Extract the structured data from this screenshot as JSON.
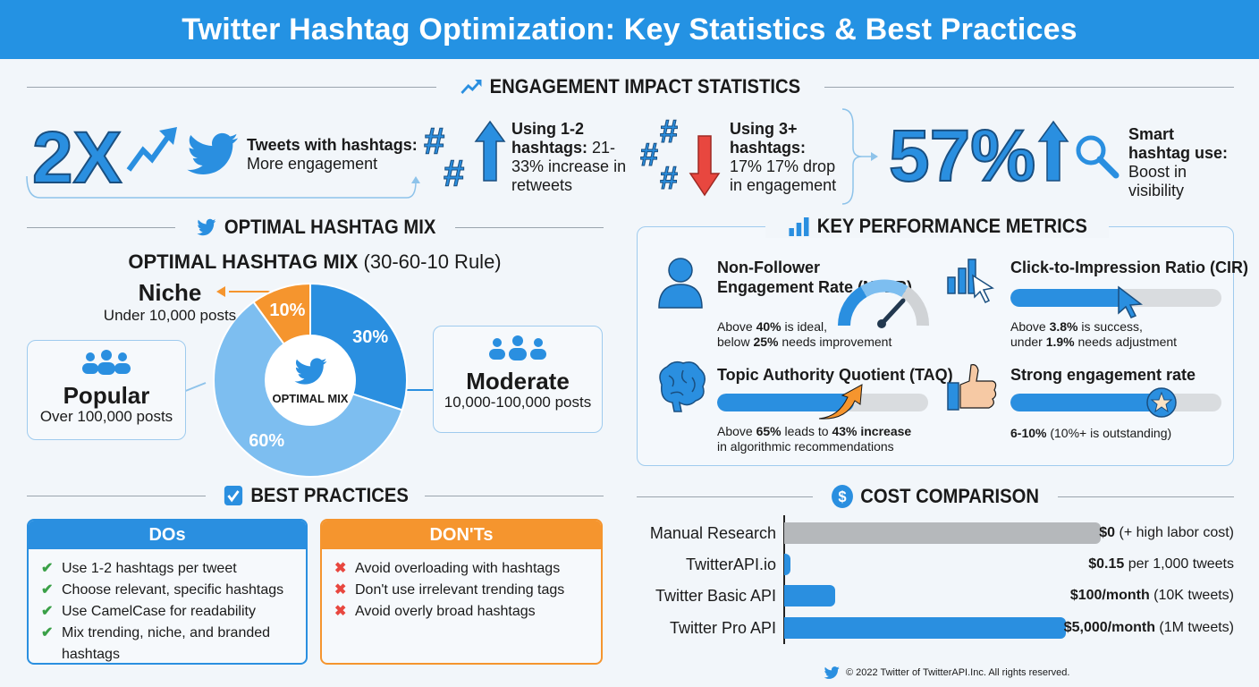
{
  "title": "Twitter Hashtag Optimization: Key Statistics & Best Practices",
  "colors": {
    "primary": "#2a8fe0",
    "light": "#7dbef0",
    "orange": "#f5952e",
    "red": "#e8473f",
    "green": "#3aa047",
    "gray": "#b5b8bb"
  },
  "engagement": {
    "heading": "ENGAGEMENT IMPACT STATISTICS",
    "stat1": {
      "big": "2X",
      "bold": "Tweets with hashtags:",
      "text": "More engagement"
    },
    "stat2": {
      "bold": "Using 1-2 hashtags:",
      "text": " 21-33% increase in retweets"
    },
    "stat3": {
      "bold": "Using 3+ hashtags:",
      "text": " 17% 17% drop in engagement"
    },
    "stat4": {
      "big": "57%",
      "bold": "Smart hashtag use:",
      "text": " Boost in visibility"
    }
  },
  "mix": {
    "heading": "OPTIMAL HASHTAG MIX",
    "subtitle_bold": "OPTIMAL HASHTAG MIX",
    "subtitle_rest": " (30-60-10 Rule)",
    "center_label": "OPTIMAL MIX",
    "niche": {
      "name": "Niche",
      "desc": "Under 10,000 posts"
    },
    "popular": {
      "name": "Popular",
      "desc": "Over 100,000 posts"
    },
    "moderate": {
      "name": "Moderate",
      "desc": "10,000-100,000 posts"
    }
  },
  "chart_data": [
    {
      "type": "pie",
      "variant": "donut",
      "slices": [
        {
          "label": "30%",
          "category": "Moderate",
          "value": 30,
          "color": "#2a8fe0"
        },
        {
          "label": "60%",
          "category": "Popular",
          "value": 60,
          "color": "#7dbef0"
        },
        {
          "label": "10%",
          "category": "Niche",
          "value": 10,
          "color": "#f5952e"
        }
      ]
    },
    {
      "type": "bar",
      "orientation": "horizontal",
      "title": "COST COMPARISON",
      "categories": [
        "Manual Research",
        "TwitterAPI.io",
        "Twitter Basic API",
        "Twitter Pro API"
      ],
      "bar_level": [
        1.0,
        0.02,
        0.16,
        0.89
      ],
      "colors": [
        "#b5b8bb",
        "#2a8fe0",
        "#2a8fe0",
        "#2a8fe0"
      ],
      "value_labels": [
        {
          "bold": "$0",
          "rest": " (+ high labor cost)"
        },
        {
          "bold": "$0.15",
          "rest": " per 1,000 tweets"
        },
        {
          "bold": "$100/month",
          "rest": " (10K tweets)"
        },
        {
          "bold": "$5,000/month",
          "rest": " (1M tweets)"
        }
      ]
    }
  ],
  "metrics": {
    "heading": "KEY PERFORMANCE METRICS",
    "nfer": {
      "title": "Non-Follower Engagement Rate (NFER)",
      "l1a": "Above ",
      "l1b": "40%",
      "l1c": " is ideal,",
      "l2a": "below ",
      "l2b": "25%",
      "l2c": " needs improvement"
    },
    "cir": {
      "title": "Click-to-Impression Ratio (CIR)",
      "level": 0.55,
      "l1a": "Above ",
      "l1b": "3.8%",
      "l1c": " is success,",
      "l2a": "under ",
      "l2b": "1.9%",
      "l2c": " needs adjustment"
    },
    "taq": {
      "title": "Topic Authority Quotient (TAQ)",
      "level": 0.65,
      "l1a": "Above ",
      "l1b": "65%",
      "l1c": " leads to ",
      "l1d": "43% increase",
      "l2": "in algorithmic recommendations"
    },
    "ser": {
      "title": "Strong engagement rate",
      "level": 0.75,
      "l1b": "6-10%",
      "l1c": " (10%+ is outstanding)"
    }
  },
  "practices": {
    "heading": "BEST PRACTICES",
    "dos_title": "DOs",
    "dos": [
      "Use 1-2 hashtags per tweet",
      "Choose relevant, specific hashtags",
      "Use CamelCase for readability",
      "Mix trending, niche, and branded hashtags"
    ],
    "donts_title": "DON'Ts",
    "donts": [
      "Avoid overloading with hashtags",
      "Don't use irrelevant trending tags",
      "Avoid overly broad hashtags"
    ],
    "check": "✔",
    "cross": "✖"
  },
  "cost_heading": "COST COMPARISON",
  "footer": "© 2022 Twitter of TwitterAPI.Inc. All rights reserved."
}
